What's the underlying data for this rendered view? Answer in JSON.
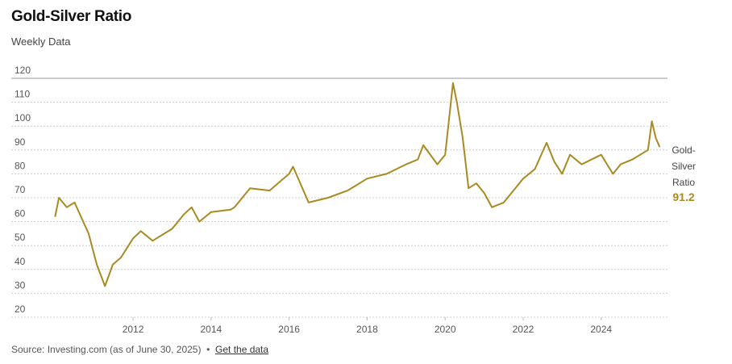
{
  "chart_data": {
    "type": "line",
    "title": "Gold-Silver Ratio",
    "subtitle": "Weekly Data",
    "source": "Source: Investing.com (as of June 30, 2025)",
    "link": "Get the data",
    "x": [
      2010.0,
      2010.1,
      2010.3,
      2010.5,
      2010.86,
      2011.07,
      2011.28,
      2011.48,
      2011.69,
      2012.0,
      2012.2,
      2012.5,
      2013.0,
      2013.3,
      2013.5,
      2013.7,
      2014.0,
      2014.5,
      2014.6,
      2015.0,
      2015.5,
      2016.0,
      2016.1,
      2016.5,
      2017.0,
      2017.5,
      2018.0,
      2018.5,
      2019.0,
      2019.3,
      2019.44,
      2019.8,
      2020.0,
      2020.2,
      2020.3,
      2020.45,
      2020.6,
      2020.8,
      2021.0,
      2021.2,
      2021.5,
      2022.0,
      2022.3,
      2022.6,
      2022.8,
      2023.0,
      2023.2,
      2023.5,
      2024.0,
      2024.3,
      2024.5,
      2024.8,
      2025.0,
      2025.2,
      2025.3,
      2025.4,
      2025.5
    ],
    "series": [
      {
        "name": "Gold-Silver Ratio",
        "color": "#a98a20",
        "values": [
          62,
          70,
          66,
          68,
          55,
          42,
          33,
          42,
          45,
          53,
          56,
          52,
          57,
          63,
          66,
          60,
          64,
          65,
          66,
          74,
          73,
          80,
          83,
          68,
          70,
          73,
          78,
          80,
          84,
          86,
          92,
          84,
          88,
          118,
          110,
          95,
          74,
          76,
          72,
          66,
          68,
          78,
          82,
          93,
          85,
          80,
          88,
          84,
          88,
          80,
          84,
          86,
          88,
          90,
          102,
          95,
          91.2
        ],
        "last_value_label": "91.2"
      }
    ],
    "xlim": [
      2009.87,
      2025.7
    ],
    "xticks": [
      2012,
      2014,
      2016,
      2018,
      2020,
      2022,
      2024
    ],
    "ylim": [
      20,
      120
    ],
    "yticks": [
      20,
      30,
      40,
      50,
      60,
      70,
      80,
      90,
      100,
      110,
      120
    ],
    "grid": true
  }
}
